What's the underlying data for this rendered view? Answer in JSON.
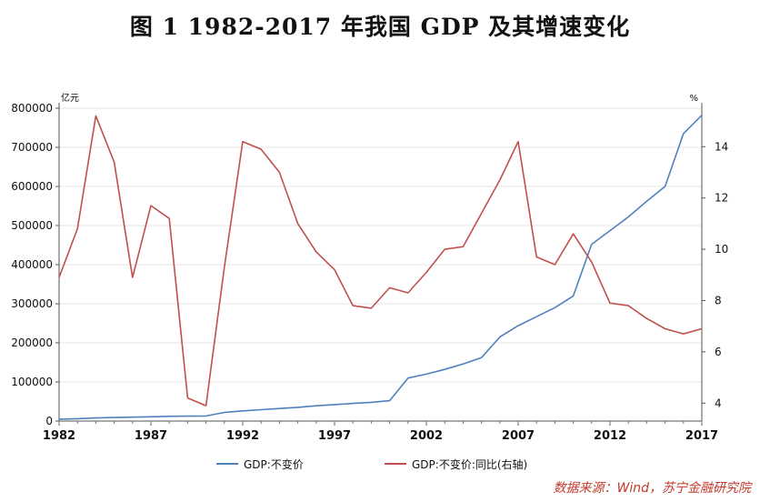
{
  "title": "图 1    1982-2017 年我国 GDP 及其增速变化",
  "source": "数据来源：Wind，苏宁金融研究院",
  "chart_data": {
    "type": "line",
    "left_unit": "亿元",
    "right_unit": "%",
    "x_ticks": [
      1982,
      1987,
      1992,
      1997,
      2002,
      2007,
      2012,
      2017
    ],
    "y_left_ticks": [
      0,
      100000,
      200000,
      300000,
      400000,
      500000,
      600000,
      700000,
      800000
    ],
    "y_right_ticks": [
      4,
      6,
      8,
      10,
      12,
      14
    ],
    "x_range": [
      1982,
      2017
    ],
    "y_left_range": [
      0,
      800000
    ],
    "y_right_range": [
      3.3,
      15.5
    ],
    "grid": "horizontal",
    "legend_position": "bottom",
    "series": [
      {
        "name": "GDP:不变价",
        "axis": "left",
        "color": "#4f81bd",
        "x": [
          1982,
          1983,
          1984,
          1985,
          1986,
          1987,
          1988,
          1989,
          1990,
          1991,
          1992,
          1993,
          1994,
          1995,
          1996,
          1997,
          1998,
          1999,
          2000,
          2001,
          2002,
          2003,
          2004,
          2005,
          2006,
          2007,
          2008,
          2009,
          2010,
          2011,
          2012,
          2013,
          2014,
          2015,
          2016,
          2017
        ],
        "y": [
          5000,
          6000,
          8000,
          9000,
          10000,
          11000,
          12000,
          12500,
          13000,
          22000,
          26000,
          29000,
          32000,
          35000,
          39000,
          42000,
          45000,
          48000,
          52000,
          110000,
          120000,
          132000,
          146000,
          162000,
          215000,
          244000,
          267000,
          290000,
          320000,
          452000,
          487000,
          522000,
          562000,
          600000,
          735000,
          782000
        ]
      },
      {
        "name": "GDP:不变价:同比(右轴)",
        "axis": "right",
        "color": "#c0504d",
        "x": [
          1982,
          1983,
          1984,
          1985,
          1986,
          1987,
          1988,
          1989,
          1990,
          1991,
          1992,
          1993,
          1994,
          1995,
          1996,
          1997,
          1998,
          1999,
          2000,
          2001,
          2002,
          2003,
          2004,
          2005,
          2006,
          2007,
          2008,
          2009,
          2010,
          2011,
          2012,
          2013,
          2014,
          2015,
          2016,
          2017
        ],
        "y": [
          8.9,
          10.8,
          15.2,
          13.4,
          8.9,
          11.7,
          11.2,
          4.2,
          3.9,
          9.3,
          14.2,
          13.9,
          13.0,
          11.0,
          9.9,
          9.2,
          7.8,
          7.7,
          8.5,
          8.3,
          9.1,
          10.0,
          10.1,
          11.4,
          12.7,
          14.2,
          9.7,
          9.4,
          10.6,
          9.5,
          7.9,
          7.8,
          7.3,
          6.9,
          6.7,
          6.9
        ]
      }
    ]
  }
}
